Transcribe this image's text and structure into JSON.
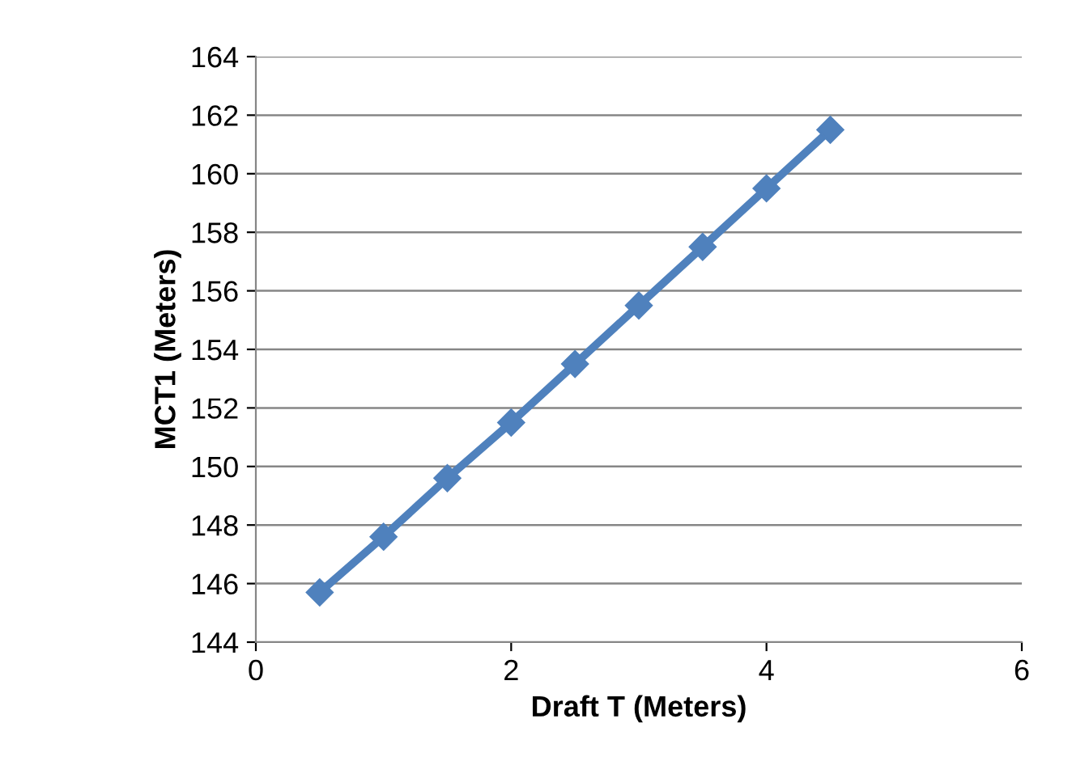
{
  "chart_data": {
    "type": "line",
    "xlabel": "Draft T (Meters)",
    "ylabel": "MCT1 (Meters)",
    "x": [
      0.5,
      1,
      1.5,
      2,
      2.5,
      3,
      3.5,
      4,
      4.5
    ],
    "series": [
      {
        "color": "#4f81bd",
        "values": [
          145.7,
          147.6,
          149.6,
          151.5,
          153.5,
          155.5,
          157.5,
          159.5,
          161.5
        ]
      }
    ],
    "xlim": [
      0,
      6
    ],
    "xticks": [
      0,
      2,
      4,
      6
    ],
    "ylim": [
      144,
      164
    ],
    "yticks": [
      144,
      146,
      148,
      150,
      152,
      154,
      156,
      158,
      160,
      162,
      164
    ],
    "grid": "y",
    "legend": false,
    "marker": "diamond",
    "line_style": "solid"
  }
}
